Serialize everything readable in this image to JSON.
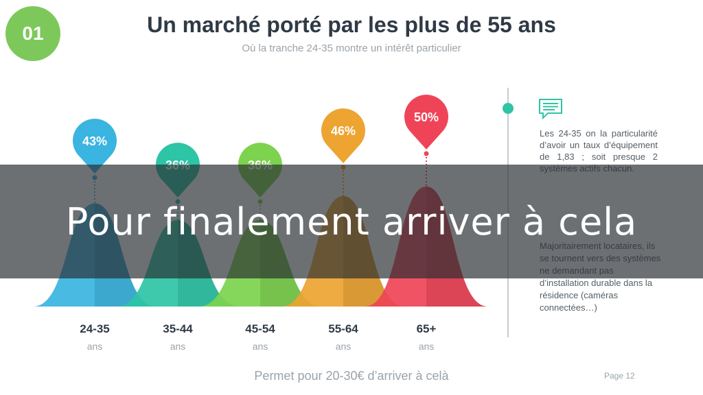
{
  "badge": "01",
  "header": {
    "title": "Un marché porté par les plus de 55 ans",
    "subtitle": "Où la tranche 24-35 montre un intérêt particulier"
  },
  "chart_data": {
    "type": "area",
    "categories": [
      "24-35",
      "35-44",
      "45-54",
      "55-64",
      "65+"
    ],
    "category_units": [
      "ans",
      "ans",
      "ans",
      "ans",
      "ans"
    ],
    "values": [
      43,
      36,
      36,
      46,
      50
    ],
    "value_labels": [
      "43%",
      "36%",
      "36%",
      "46%",
      "50%"
    ],
    "colors": [
      "#3ab4e0",
      "#2ec4a6",
      "#7dd24e",
      "#eda431",
      "#ef4457"
    ]
  },
  "notes": {
    "note1": "Les 24-35 on la particularité d’avoir un taux d’équipement de 1,83 ; soit presque 2 systèmes actifs chacun.",
    "note2": "Majoritairement locataires, ils se tournent vers des systèmes ne demandant pas d’installation durable dans la résidence (caméras connectées…)",
    "accent": "#2ec4a6",
    "icon": "comment-icon"
  },
  "overlay": {
    "text": "Pour finalement arriver à cela"
  },
  "footer": {
    "text": "Permet pour 20-30€ d’arriver à celà",
    "page_label": "Page",
    "page_number": "12"
  }
}
